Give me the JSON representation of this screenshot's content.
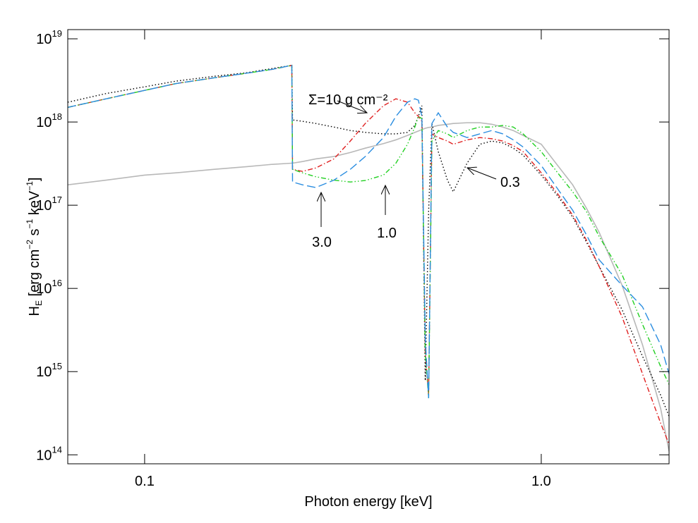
{
  "chart_data": {
    "type": "line",
    "xscale": "log",
    "yscale": "log",
    "xlabel": "Photon energy [keV]",
    "ylabel": [
      {
        "text": "H"
      },
      {
        "text": "E",
        "pos": "sub"
      },
      {
        "text": " [erg cm"
      },
      {
        "text": "−2",
        "pos": "sup"
      },
      {
        "text": " s"
      },
      {
        "text": "−1",
        "pos": "sup"
      },
      {
        "text": " keV"
      },
      {
        "text": "−1",
        "pos": "sup"
      },
      {
        "text": "]"
      }
    ],
    "xlim": [
      0.064,
      2.1
    ],
    "ylim": [
      78000000000000.0,
      1.29e+19
    ],
    "xticks": [
      0.1,
      {
        "value": 1,
        "label": "1.0"
      }
    ],
    "yticks": [
      {
        "value": 100000000000000.0,
        "label": "10",
        "exponent": "14"
      },
      {
        "value": 1000000000000000.0,
        "label": "10",
        "exponent": "15"
      },
      {
        "value": 1e+16,
        "label": "10",
        "exponent": "16"
      },
      {
        "value": 1e+17,
        "label": "10",
        "exponent": "17"
      },
      {
        "value": 1e+18,
        "label": "10",
        "exponent": "18"
      },
      {
        "value": 1e+19,
        "label": "10",
        "exponent": "19"
      }
    ],
    "annotations": [
      "Σ=10 g cm⁻²",
      "3.0",
      "1.0",
      "0.3"
    ],
    "x": [
      0.064,
      0.08,
      0.1,
      0.12,
      0.15,
      0.18,
      0.21,
      0.235,
      0.236,
      0.25,
      0.27,
      0.3,
      0.33,
      0.36,
      0.4,
      0.43,
      0.46,
      0.48,
      0.49,
      0.5,
      0.51,
      0.52,
      0.53,
      0.55,
      0.58,
      0.6,
      0.65,
      0.7,
      0.75,
      0.8,
      0.85,
      0.9,
      1.0,
      1.1,
      1.2,
      1.3,
      1.4,
      1.6,
      1.8,
      2.0,
      2.1
    ],
    "series": [
      {
        "color": "#b8b8b8",
        "style": "solid",
        "values": [
          1.76e+17,
          2e+17,
          2.3e+17,
          2.45e+17,
          2.7e+17,
          2.9e+17,
          3.1e+17,
          3.2e+17,
          3.2e+17,
          3.35e+17,
          3.6e+17,
          3.85e+17,
          4.3e+17,
          4.85e+17,
          5.5e+17,
          6.1e+17,
          6.9e+17,
          7.5e+17,
          7.8e+17,
          8.1e+17,
          8.4e+17,
          8.6e+17,
          8.7e+17,
          9.1e+17,
          9.4e+17,
          9.6e+17,
          9.8e+17,
          9.8e+17,
          9.4e+17,
          8.7e+17,
          7.9e+17,
          6.9e+17,
          5.4e+17,
          3e+17,
          1.76e+17,
          9.2e+16,
          4.7e+16,
          1.08e+16,
          2100000000000000.0,
          360000000000000.0,
          110000000000000.0
        ]
      },
      {
        "color": "#000000",
        "style": "dotted",
        "values": [
          1.73e+18,
          2.2e+18,
          2.65e+18,
          3.1e+18,
          3.55e+18,
          3.9e+18,
          4.4e+18,
          4.8e+18,
          1.06e+18,
          1.02e+18,
          9.6e+17,
          8.7e+17,
          7.9e+17,
          7.5e+17,
          7.2e+17,
          7.2e+17,
          7.5e+17,
          9.1e+17,
          1.17e+18,
          1.57e+18,
          780000000000000.0,
          8.4e+16,
          9.6e+17,
          4.4e+17,
          2e+17,
          1.45e+17,
          3.2e+17,
          5.4e+17,
          5.9e+17,
          5.6e+17,
          4.85e+17,
          4e+17,
          2.3e+17,
          1.29e+17,
          7.2e+16,
          3.6e+16,
          1.83e+16,
          5500000000000000.0,
          1530000000000000.0,
          520000000000000.0,
          290000000000000.0
        ]
      },
      {
        "color": "#e02020",
        "style": "dashdot",
        "values": [
          1.5e+18,
          1.9e+18,
          2.4e+18,
          2.9e+18,
          3.4e+18,
          3.85e+18,
          4.3e+18,
          4.8e+18,
          2.7e+17,
          2.55e+17,
          2.8e+17,
          3.6e+17,
          5.9e+17,
          9.6e+17,
          1.57e+18,
          1.9e+18,
          1.73e+18,
          1.29e+18,
          1.17e+18,
          1.02e+18,
          1700000000000000.0,
          520000000000000.0,
          7.2e+17,
          6.5e+17,
          5.9e+17,
          5.4e+17,
          6.1e+17,
          6.5e+17,
          6.3e+17,
          5.9e+17,
          5.2e+17,
          4.4e+17,
          2.45e+17,
          1.37e+17,
          7.6e+16,
          3.8e+16,
          1.83e+16,
          4500000000000000.0,
          940000000000000.0,
          240000000000000.0,
          134000000000000.0
        ]
      },
      {
        "color": "#22d022",
        "style": "dashdotdot",
        "values": [
          1.5e+18,
          1.9e+18,
          2.4e+18,
          2.9e+18,
          3.4e+18,
          3.85e+18,
          4.3e+18,
          4.8e+18,
          2.7e+17,
          2.45e+17,
          2.2e+17,
          2e+17,
          1.9e+17,
          1.98e+17,
          2.3e+17,
          3.2e+17,
          5.4e+17,
          8.7e+17,
          1.17e+18,
          1.1e+18,
          1700000000000000.0,
          480000000000000.0,
          5.9e+17,
          7.9e+17,
          7.2e+17,
          6.5e+17,
          7.9e+17,
          8.7e+17,
          8.7e+17,
          9.1e+17,
          8.7e+17,
          7.2e+17,
          4.4e+17,
          2.45e+17,
          1.45e+17,
          8.4e+16,
          4.2e+16,
          1.45e+16,
          3700000000000000.0,
          1150000000000000.0,
          700000000000000.0
        ]
      },
      {
        "color": "#2a8de0",
        "style": "dashed",
        "values": [
          1.5e+18,
          1.9e+18,
          2.4e+18,
          2.9e+18,
          3.4e+18,
          3.85e+18,
          4.3e+18,
          4.8e+18,
          1.9e+17,
          1.76e+17,
          1.63e+17,
          2e+17,
          2.7e+17,
          3.85e+17,
          6.5e+17,
          1.17e+18,
          1.73e+18,
          1.9e+18,
          1.83e+18,
          1.17e+18,
          2500000000000000.0,
          480000000000000.0,
          9.6e+17,
          1.29e+18,
          8.7e+17,
          7.5e+17,
          6.5e+17,
          7.2e+17,
          7.9e+17,
          7.2e+17,
          6.1e+17,
          5e+17,
          3e+17,
          1.57e+17,
          8.7e+16,
          4.4e+16,
          2.2e+16,
          1.08e+16,
          6000000000000000.0,
          2100000000000000.0,
          940000000000000.0
        ]
      }
    ]
  }
}
